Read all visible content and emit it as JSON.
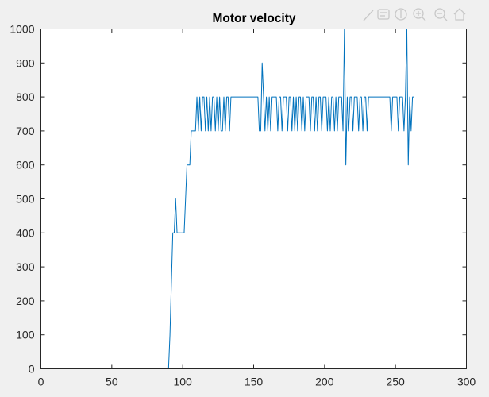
{
  "chart_data": {
    "type": "line",
    "title": "Motor velocity",
    "xlabel": "",
    "ylabel": "",
    "xlim": [
      0,
      300
    ],
    "ylim": [
      0,
      1000
    ],
    "xticks": [
      0,
      50,
      100,
      150,
      200,
      250,
      300
    ],
    "yticks": [
      0,
      100,
      200,
      300,
      400,
      500,
      600,
      700,
      800,
      900,
      1000
    ],
    "grid": false,
    "legend": false,
    "series": [
      {
        "color": "#0072BD",
        "x": [
          0,
          90,
          91,
          92,
          93,
          94,
          95,
          96,
          97,
          98,
          99,
          100,
          101,
          102,
          103,
          104,
          105,
          106,
          107,
          108,
          109,
          110,
          111,
          112,
          113,
          114,
          115,
          116,
          117,
          118,
          119,
          120,
          121,
          122,
          123,
          124,
          125,
          126,
          127,
          128,
          129,
          130,
          131,
          132,
          133,
          134,
          135,
          136,
          137,
          138,
          144,
          153,
          154,
          155,
          156,
          157,
          158,
          159,
          160,
          161,
          162,
          163,
          164,
          165,
          166,
          167,
          168,
          169,
          170,
          171,
          172,
          173,
          174,
          175,
          176,
          177,
          178,
          179,
          180,
          181,
          182,
          183,
          184,
          185,
          186,
          187,
          188,
          189,
          190,
          191,
          192,
          193,
          194,
          195,
          196,
          197,
          198,
          199,
          200,
          201,
          202,
          203,
          204,
          205,
          206,
          207,
          208,
          209,
          210,
          211,
          212,
          213,
          214,
          215,
          216,
          217,
          218,
          219,
          220,
          221,
          222,
          223,
          224,
          225,
          226,
          227,
          228,
          229,
          230,
          231,
          232,
          233,
          234,
          235,
          236,
          237,
          238,
          239,
          240,
          246,
          247,
          248,
          249,
          250,
          251,
          252,
          253,
          254,
          255,
          256,
          257,
          258,
          259,
          260,
          261,
          262,
          263
        ],
        "values": [
          0,
          0,
          100,
          250,
          400,
          400,
          500,
          400,
          400,
          400,
          400,
          400,
          400,
          500,
          600,
          600,
          600,
          700,
          700,
          700,
          700,
          800,
          700,
          800,
          700,
          800,
          800,
          700,
          800,
          700,
          800,
          700,
          800,
          800,
          700,
          800,
          700,
          800,
          700,
          700,
          800,
          700,
          800,
          800,
          700,
          800,
          800,
          800,
          800,
          800,
          800,
          800,
          700,
          700,
          900,
          800,
          700,
          800,
          700,
          800,
          700,
          800,
          800,
          800,
          800,
          700,
          800,
          800,
          700,
          800,
          800,
          800,
          700,
          800,
          800,
          700,
          800,
          700,
          800,
          700,
          800,
          800,
          700,
          800,
          700,
          800,
          800,
          800,
          700,
          800,
          800,
          700,
          800,
          700,
          800,
          800,
          700,
          800,
          800,
          800,
          700,
          800,
          700,
          800,
          800,
          700,
          800,
          700,
          800,
          800,
          800,
          700,
          1000,
          600,
          800,
          700,
          800,
          800,
          700,
          800,
          800,
          800,
          700,
          800,
          800,
          700,
          800,
          800,
          700,
          800,
          800,
          800,
          800,
          800,
          800,
          800,
          800,
          800,
          800,
          800,
          700,
          800,
          800,
          800,
          800,
          700,
          800,
          800,
          800,
          700,
          800,
          1000,
          600,
          800,
          700,
          800,
          800
        ]
      }
    ]
  },
  "toolbar": {
    "icons": [
      "brush-icon",
      "data-tips-icon",
      "pan-icon",
      "zoom-in-icon",
      "zoom-out-icon",
      "home-icon"
    ]
  }
}
